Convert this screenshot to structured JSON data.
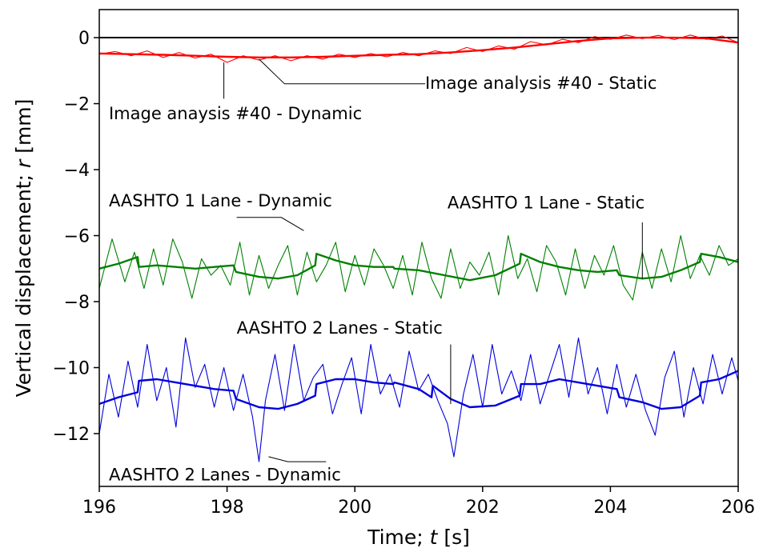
{
  "chart_data": {
    "type": "line",
    "title": "",
    "xlabel_prefix": "Time; ",
    "xlabel_symbol": "t",
    "xlabel_unit": " [s]",
    "ylabel_prefix": "Vertical displacement; ",
    "ylabel_symbol": "r",
    "ylabel_unit": " [mm]",
    "xlim": [
      196,
      206
    ],
    "ylim": [
      -13.6,
      0.85
    ],
    "xticks": [
      196,
      198,
      200,
      202,
      204,
      206
    ],
    "yticks": [
      0,
      -2,
      -4,
      -6,
      -8,
      -10,
      -12
    ],
    "ytick_labels": [
      "0",
      "−2",
      "−4",
      "−6",
      "−8",
      "−10",
      "−12"
    ],
    "grid": false,
    "legend": "none",
    "zero_line": {
      "y": 0,
      "color": "#000000"
    },
    "series": [
      {
        "color": "#ff0000",
        "kind": "static",
        "x": [
          196,
          196.5,
          197,
          197.5,
          198,
          198.5,
          199,
          199.5,
          200,
          200.5,
          201,
          201.5,
          202,
          202.5,
          203,
          203.5,
          204,
          204.5,
          205,
          205.5,
          206
        ],
        "y": [
          -0.48,
          -0.5,
          -0.52,
          -0.55,
          -0.58,
          -0.6,
          -0.6,
          -0.58,
          -0.55,
          -0.52,
          -0.5,
          -0.45,
          -0.38,
          -0.3,
          -0.2,
          -0.1,
          -0.02,
          0.0,
          0.0,
          -0.02,
          -0.15
        ]
      },
      {
        "color": "#ff0000",
        "kind": "dynamic",
        "x": [
          196,
          196.25,
          196.5,
          196.75,
          197,
          197.25,
          197.5,
          197.75,
          198,
          198.25,
          198.5,
          198.75,
          199,
          199.25,
          199.5,
          199.75,
          200,
          200.25,
          200.5,
          200.75,
          201,
          201.25,
          201.5,
          201.75,
          202,
          202.25,
          202.5,
          202.75,
          203,
          203.25,
          203.5,
          203.75,
          204,
          204.25,
          204.5,
          204.75,
          205,
          205.25,
          205.5,
          205.75,
          206
        ],
        "y": [
          -0.5,
          -0.42,
          -0.55,
          -0.4,
          -0.6,
          -0.45,
          -0.62,
          -0.5,
          -0.75,
          -0.55,
          -0.68,
          -0.55,
          -0.7,
          -0.55,
          -0.65,
          -0.5,
          -0.6,
          -0.48,
          -0.58,
          -0.45,
          -0.55,
          -0.4,
          -0.48,
          -0.3,
          -0.42,
          -0.25,
          -0.35,
          -0.12,
          -0.22,
          -0.05,
          -0.15,
          0.03,
          -0.05,
          0.08,
          -0.03,
          0.07,
          -0.06,
          0.08,
          -0.05,
          0.05,
          -0.15
        ]
      },
      {
        "color": "#008000",
        "kind": "static",
        "x": [
          196,
          196.3,
          196.6,
          196.62,
          196.9,
          197.2,
          197.5,
          197.8,
          198.1,
          198.14,
          198.5,
          198.8,
          199.1,
          199.38,
          199.4,
          199.7,
          200,
          200.3,
          200.6,
          200.62,
          201,
          201.4,
          201.8,
          202.2,
          202.58,
          202.6,
          202.9,
          203.2,
          203.5,
          203.8,
          204.1,
          204.14,
          204.5,
          204.8,
          205.1,
          205.4,
          205.42,
          205.7,
          206
        ],
        "y": [
          -7.0,
          -6.85,
          -6.65,
          -6.95,
          -6.9,
          -6.95,
          -7.0,
          -6.95,
          -6.9,
          -7.1,
          -7.25,
          -7.3,
          -7.2,
          -6.9,
          -6.55,
          -6.75,
          -6.9,
          -6.95,
          -6.95,
          -7.0,
          -7.05,
          -7.2,
          -7.35,
          -7.2,
          -6.85,
          -6.55,
          -6.8,
          -6.95,
          -7.05,
          -7.1,
          -7.05,
          -7.2,
          -7.3,
          -7.25,
          -7.05,
          -6.8,
          -6.55,
          -6.65,
          -6.8
        ]
      },
      {
        "color": "#008000",
        "kind": "dynamic",
        "x": [
          196,
          196.2,
          196.4,
          196.55,
          196.7,
          196.85,
          197.0,
          197.15,
          197.3,
          197.45,
          197.6,
          197.75,
          197.9,
          198.05,
          198.2,
          198.35,
          198.5,
          198.65,
          198.8,
          198.95,
          199.1,
          199.25,
          199.4,
          199.55,
          199.7,
          199.85,
          200.0,
          200.15,
          200.3,
          200.45,
          200.6,
          200.75,
          200.9,
          201.05,
          201.2,
          201.35,
          201.5,
          201.65,
          201.8,
          201.95,
          202.1,
          202.25,
          202.4,
          202.55,
          202.7,
          202.85,
          203.0,
          203.15,
          203.3,
          203.45,
          203.6,
          203.75,
          203.9,
          204.05,
          204.2,
          204.35,
          204.5,
          204.65,
          204.8,
          204.95,
          205.1,
          205.25,
          205.4,
          205.55,
          205.7,
          205.85,
          206
        ],
        "y": [
          -7.6,
          -6.1,
          -7.4,
          -6.5,
          -7.6,
          -6.4,
          -7.5,
          -6.1,
          -6.8,
          -7.9,
          -6.7,
          -7.2,
          -6.9,
          -7.5,
          -6.2,
          -7.8,
          -6.6,
          -7.6,
          -6.9,
          -6.3,
          -7.8,
          -6.5,
          -7.4,
          -6.9,
          -6.2,
          -7.7,
          -6.6,
          -7.5,
          -6.4,
          -6.9,
          -7.6,
          -6.6,
          -7.8,
          -6.2,
          -7.3,
          -7.9,
          -6.4,
          -7.6,
          -6.8,
          -7.2,
          -6.5,
          -7.8,
          -6.0,
          -7.3,
          -6.7,
          -7.7,
          -6.3,
          -6.8,
          -7.8,
          -6.4,
          -7.6,
          -6.6,
          -7.2,
          -6.3,
          -7.5,
          -7.95,
          -6.5,
          -7.6,
          -6.4,
          -7.4,
          -6.0,
          -7.3,
          -6.6,
          -7.2,
          -6.3,
          -6.9,
          -6.7
        ]
      },
      {
        "color": "#0000dd",
        "kind": "static",
        "x": [
          196,
          196.3,
          196.6,
          196.62,
          196.9,
          197.2,
          197.5,
          197.8,
          198.1,
          198.14,
          198.5,
          198.8,
          199.1,
          199.38,
          199.4,
          199.7,
          200,
          200.3,
          200.6,
          200.62,
          201,
          201.2,
          201.22,
          201.5,
          201.8,
          202.2,
          202.58,
          202.6,
          202.9,
          203.2,
          203.5,
          203.8,
          204.1,
          204.14,
          204.5,
          204.8,
          205.1,
          205.4,
          205.42,
          205.7,
          206
        ],
        "y": [
          -11.1,
          -10.9,
          -10.75,
          -10.4,
          -10.35,
          -10.45,
          -10.55,
          -10.65,
          -10.7,
          -10.95,
          -11.2,
          -11.25,
          -11.1,
          -10.85,
          -10.5,
          -10.35,
          -10.35,
          -10.45,
          -10.5,
          -10.45,
          -10.65,
          -10.9,
          -10.55,
          -10.95,
          -11.2,
          -11.15,
          -10.85,
          -10.5,
          -10.5,
          -10.35,
          -10.45,
          -10.55,
          -10.65,
          -10.9,
          -11.05,
          -11.25,
          -11.2,
          -10.85,
          -10.45,
          -10.35,
          -10.1
        ]
      },
      {
        "color": "#0000dd",
        "kind": "dynamic",
        "x": [
          196,
          196.15,
          196.3,
          196.45,
          196.6,
          196.75,
          196.9,
          197.05,
          197.2,
          197.35,
          197.5,
          197.65,
          197.8,
          197.95,
          198.1,
          198.25,
          198.4,
          198.5,
          198.6,
          198.75,
          198.9,
          199.05,
          199.2,
          199.35,
          199.5,
          199.65,
          199.8,
          199.95,
          200.1,
          200.25,
          200.4,
          200.55,
          200.7,
          200.85,
          201.0,
          201.15,
          201.3,
          201.45,
          201.55,
          201.7,
          201.85,
          202.0,
          202.15,
          202.3,
          202.45,
          202.6,
          202.75,
          202.9,
          203.05,
          203.2,
          203.35,
          203.5,
          203.65,
          203.8,
          203.95,
          204.1,
          204.25,
          204.4,
          204.55,
          204.7,
          204.85,
          205.0,
          205.15,
          205.3,
          205.45,
          205.6,
          205.75,
          205.9,
          206
        ],
        "y": [
          -12.0,
          -10.2,
          -11.5,
          -9.8,
          -11.2,
          -9.3,
          -11.0,
          -10.0,
          -11.8,
          -9.1,
          -10.6,
          -9.9,
          -11.2,
          -10.0,
          -11.3,
          -10.2,
          -11.5,
          -12.85,
          -11.0,
          -9.6,
          -11.3,
          -9.3,
          -11.0,
          -10.3,
          -9.9,
          -11.4,
          -10.5,
          -9.7,
          -11.4,
          -9.3,
          -10.8,
          -10.2,
          -11.2,
          -9.5,
          -10.7,
          -10.2,
          -11.0,
          -11.7,
          -12.7,
          -10.8,
          -9.6,
          -11.2,
          -9.3,
          -10.8,
          -10.1,
          -11.0,
          -9.6,
          -11.1,
          -10.2,
          -9.3,
          -10.9,
          -9.1,
          -10.8,
          -10.0,
          -11.4,
          -9.9,
          -11.2,
          -10.2,
          -11.3,
          -12.05,
          -10.3,
          -9.5,
          -11.5,
          -10.0,
          -11.1,
          -9.6,
          -10.8,
          -9.7,
          -10.4
        ]
      }
    ],
    "annotations": [
      {
        "text": "Image analysis #40 - Static",
        "label_x": 201.1,
        "label_y": -1.38,
        "anchor": "start",
        "line": [
          [
            196.0,
            -0.5
          ],
          [
            196.0,
            -0.5
          ]
        ],
        "leader": [
          [
            198.5,
            -0.65
          ],
          [
            198.9,
            -1.4
          ],
          [
            201.1,
            -1.4
          ]
        ]
      },
      {
        "text": "Image anaysis #40 - Dynamic",
        "label_x": 196.15,
        "label_y": -2.3,
        "anchor": "start",
        "leader": [
          [
            197.95,
            -0.75
          ],
          [
            197.95,
            -1.85
          ]
        ]
      },
      {
        "text": "AASHTO 1 Lane - Dynamic",
        "label_x": 196.15,
        "label_y": -4.95,
        "anchor": "start",
        "leader": [
          [
            198.15,
            -5.45
          ],
          [
            198.85,
            -5.45
          ],
          [
            199.2,
            -5.85
          ]
        ]
      },
      {
        "text": "AASHTO 1 Lane - Static",
        "label_x": 201.45,
        "label_y": -5.0,
        "anchor": "start",
        "leader": [
          [
            204.5,
            -5.6
          ],
          [
            204.5,
            -7.3
          ]
        ]
      },
      {
        "text": "AASHTO 2 Lanes - Static",
        "label_x": 198.15,
        "label_y": -8.8,
        "anchor": "start",
        "leader": [
          [
            201.5,
            -9.3
          ],
          [
            201.5,
            -11.1
          ]
        ]
      },
      {
        "text": "AASHTO 2 Lanes - Dynamic",
        "label_x": 196.15,
        "label_y": -13.25,
        "anchor": "start",
        "leader": [
          [
            198.65,
            -12.7
          ],
          [
            198.95,
            -12.85
          ],
          [
            199.55,
            -12.85
          ]
        ]
      }
    ]
  }
}
